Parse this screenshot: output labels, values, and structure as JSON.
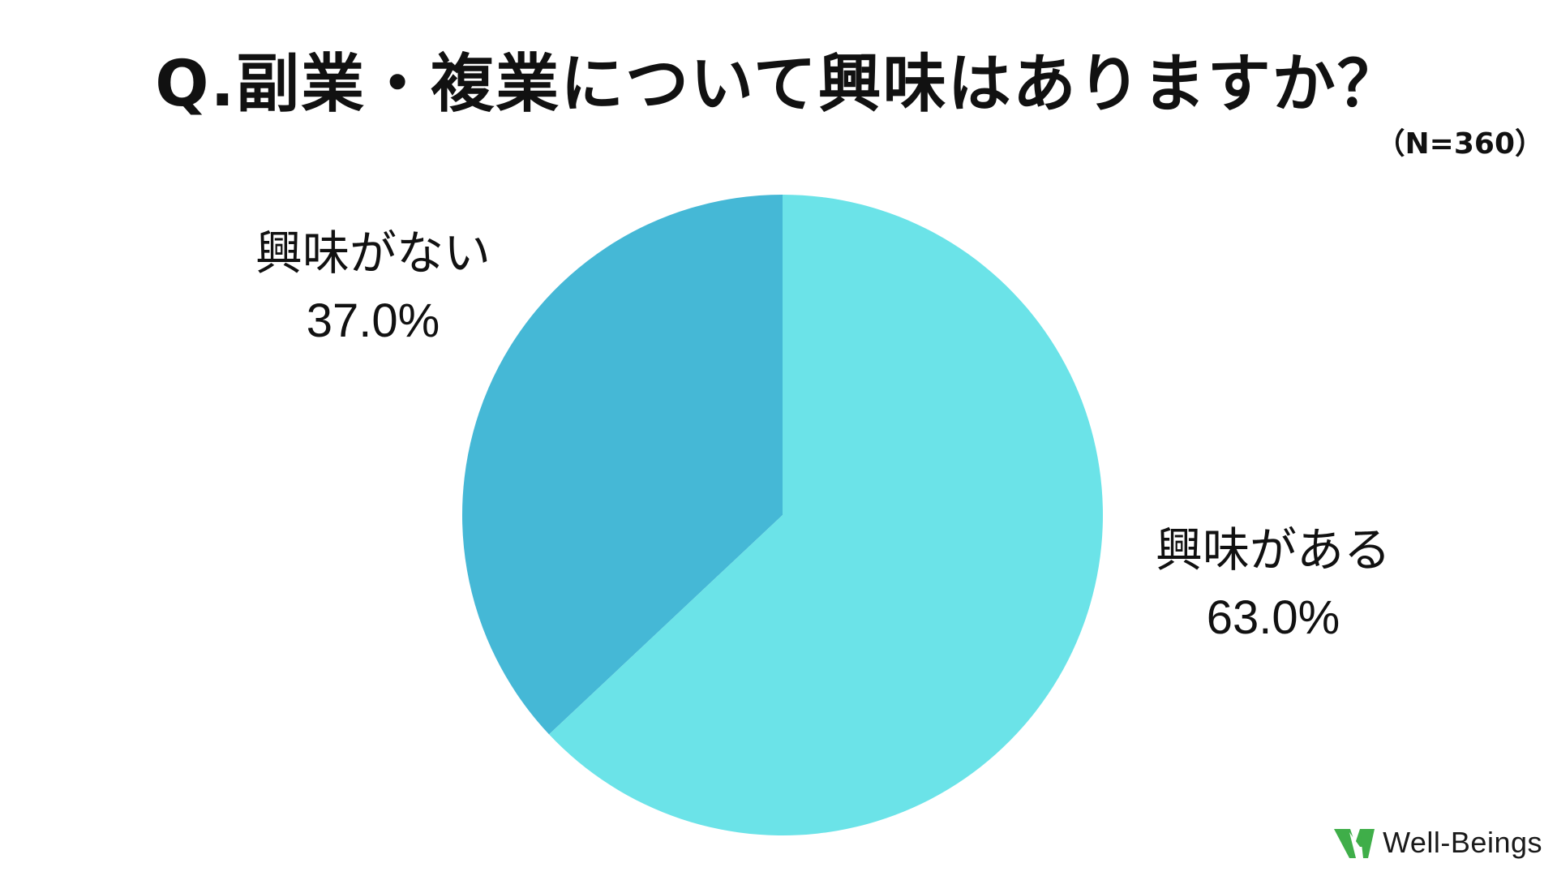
{
  "chart_data": {
    "type": "pie",
    "title": "Q.副業・複業について興味はありますか？",
    "subtitle": "（N=360）",
    "slices": [
      {
        "name": "興味がない",
        "value": 37.0,
        "label": "37.0%",
        "color": "#45b8d6"
      },
      {
        "name": "興味がある",
        "value": 63.0,
        "label": "63.0%",
        "color": "#6be3e8"
      }
    ]
  },
  "brand": {
    "name": "Well-Beings",
    "icon": "well-beings-logo-icon",
    "color": "#3fae49"
  }
}
